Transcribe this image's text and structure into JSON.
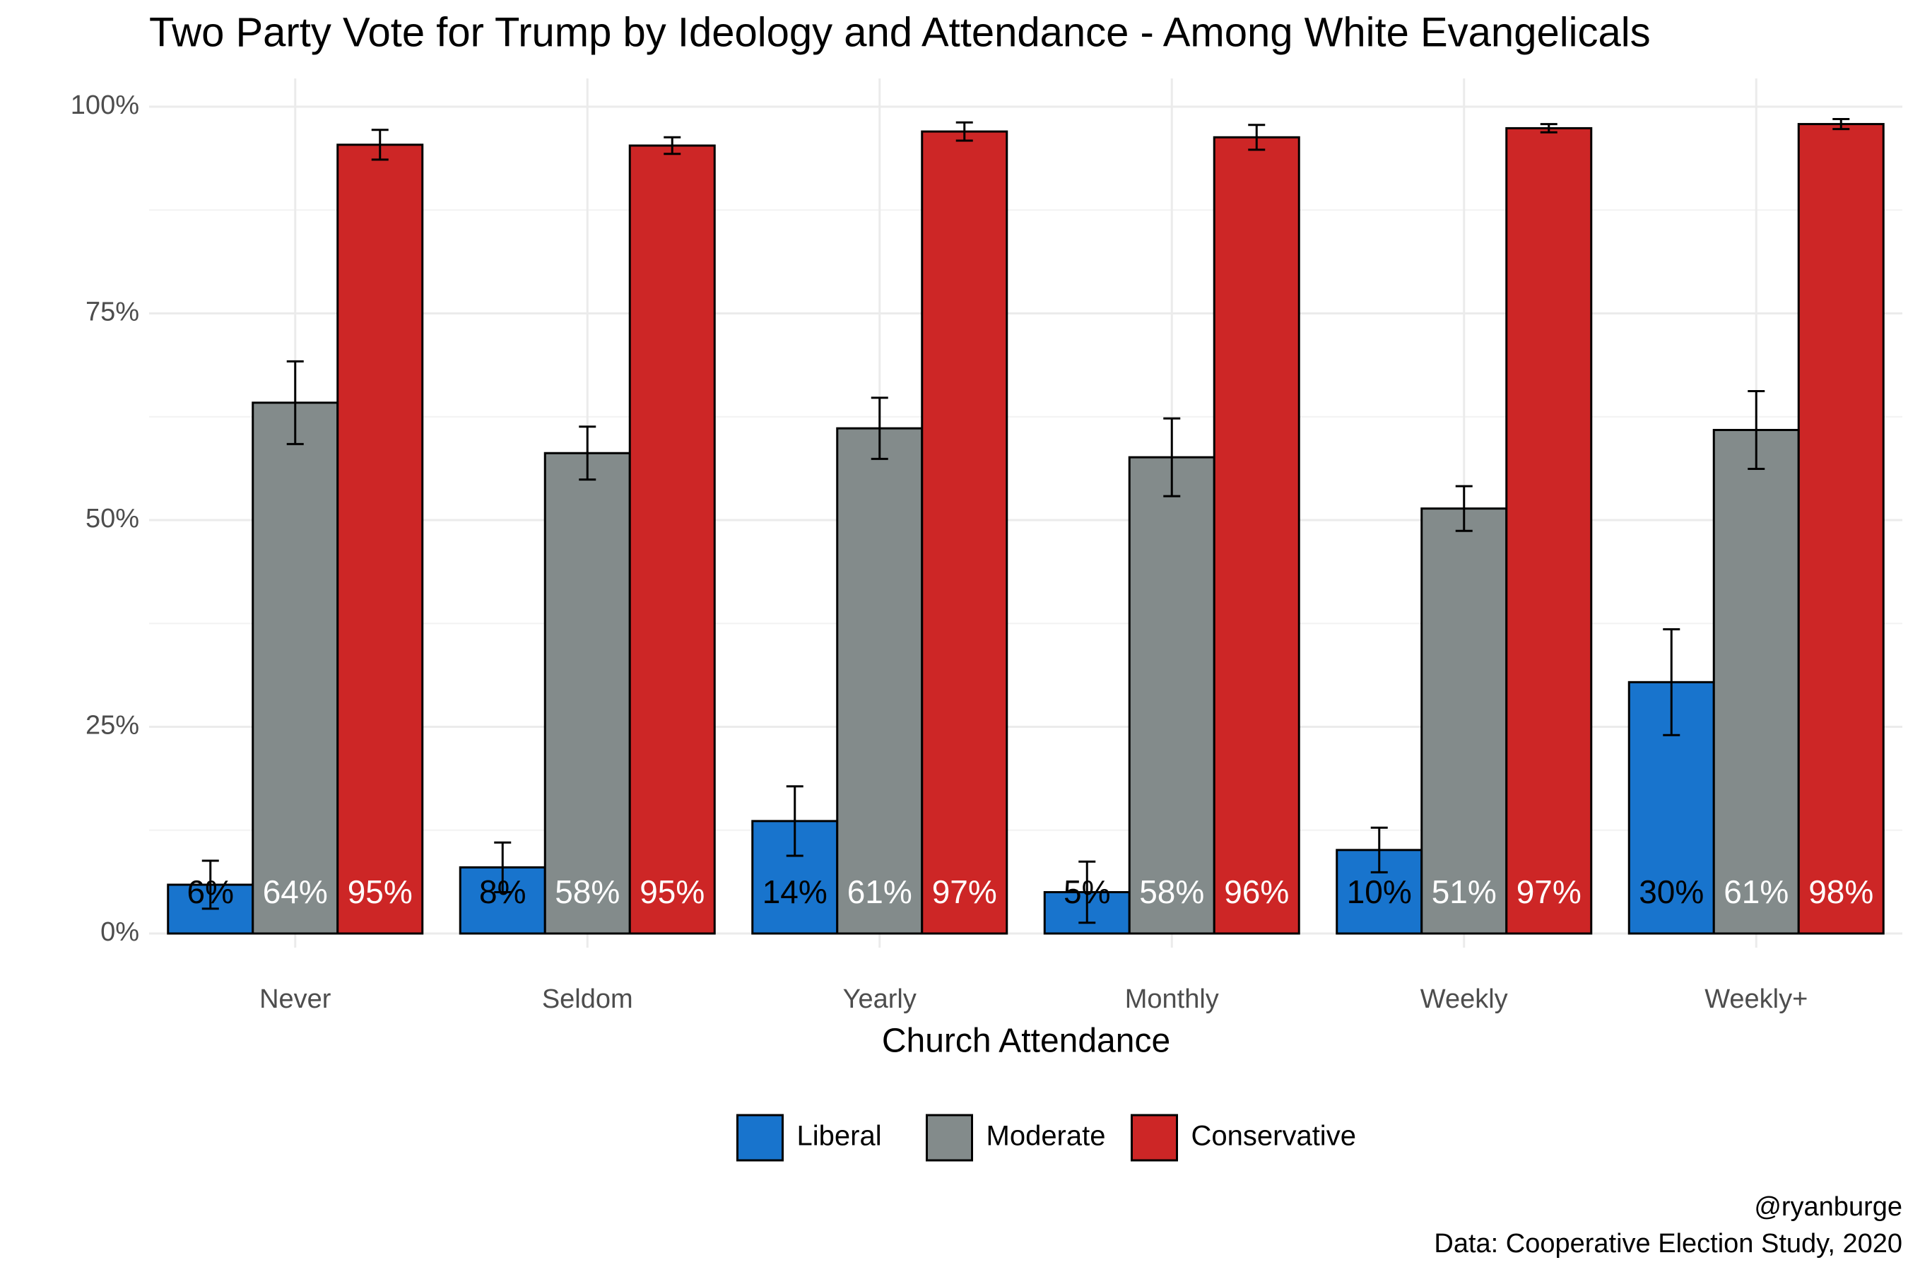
{
  "chart_data": {
    "type": "bar",
    "title": "Two Party Vote for Trump by Ideology and Attendance - Among White Evangelicals",
    "x_label": "Church Attendance",
    "categories": [
      "Never",
      "Seldom",
      "Yearly",
      "Monthly",
      "Weekly",
      "Weekly+"
    ],
    "series": [
      {
        "name": "Liberal",
        "color": "#1874cd",
        "label_color": "#000000",
        "values": [
          5.9,
          8.0,
          13.6,
          5.0,
          10.1,
          30.4
        ],
        "errors": [
          2.9,
          3.0,
          4.2,
          3.7,
          2.7,
          6.4
        ],
        "value_labels": [
          "6%",
          "8%",
          "14%",
          "5%",
          "10%",
          "30%"
        ]
      },
      {
        "name": "Moderate",
        "color": "#838b8b",
        "label_color": "#ffffff",
        "values": [
          64.2,
          58.1,
          61.1,
          57.6,
          51.4,
          60.9
        ],
        "errors": [
          5.0,
          3.2,
          3.7,
          4.7,
          2.7,
          4.7
        ],
        "value_labels": [
          "64%",
          "58%",
          "61%",
          "58%",
          "51%",
          "61%"
        ]
      },
      {
        "name": "Conservative",
        "color": "#cd2626",
        "label_color": "#ffffff",
        "values": [
          95.4,
          95.3,
          97.0,
          96.3,
          97.4,
          97.9
        ],
        "errors": [
          1.8,
          1.0,
          1.1,
          1.5,
          0.5,
          0.6
        ],
        "value_labels": [
          "95%",
          "95%",
          "97%",
          "96%",
          "97%",
          "98%"
        ]
      }
    ],
    "ylim": [
      0,
      100
    ],
    "yticks": [
      {
        "value": 0,
        "label": "0%"
      },
      {
        "value": 25,
        "label": "25%"
      },
      {
        "value": 50,
        "label": "50%"
      },
      {
        "value": 75,
        "label": "75%"
      },
      {
        "value": 100,
        "label": "100%"
      }
    ],
    "grid": true,
    "legend_position": "bottom",
    "caption": [
      "@ryanburge",
      "Data: Cooperative Election Study, 2020"
    ]
  }
}
